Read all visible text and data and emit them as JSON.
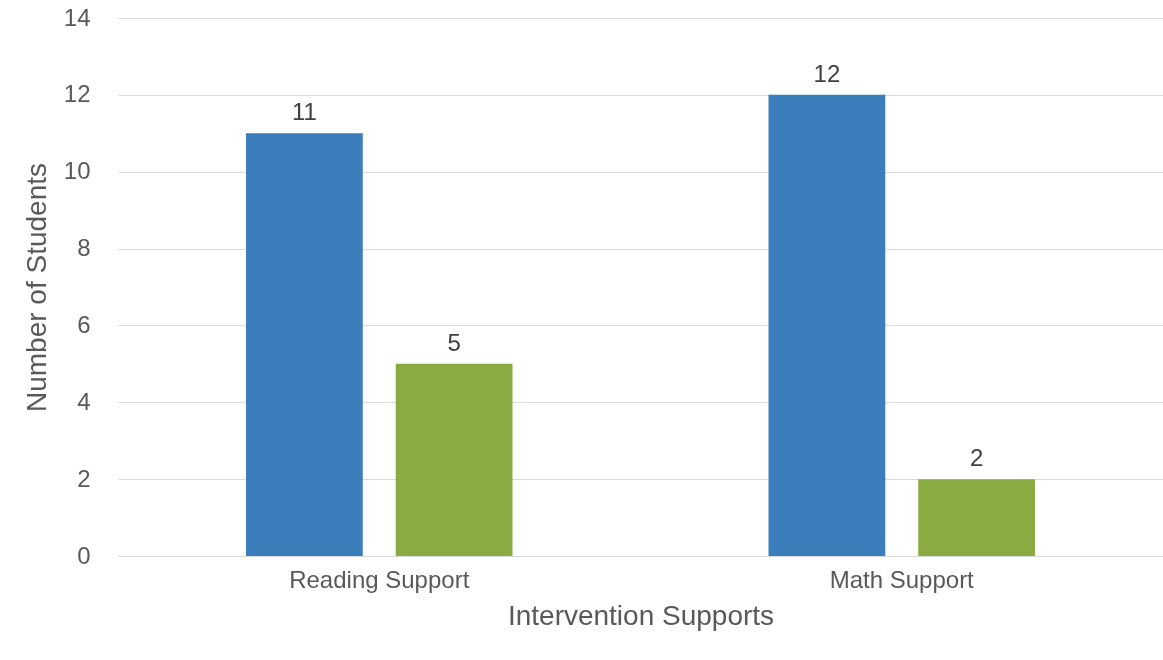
{
  "chart_data": {
    "type": "bar",
    "xlabel": "Intervention Supports",
    "ylabel": "Number of Students",
    "categories": [
      "Reading Support",
      "Math Support"
    ],
    "series": [
      {
        "color": "#3a7fbb",
        "values": [
          11,
          12
        ]
      },
      {
        "color": "#8aab42",
        "values": [
          5,
          2
        ]
      }
    ],
    "ylim": [
      0,
      14
    ],
    "yticks": [
      0,
      2,
      4,
      6,
      8,
      10,
      12,
      14
    ],
    "grid": "y",
    "data_labels": true
  }
}
